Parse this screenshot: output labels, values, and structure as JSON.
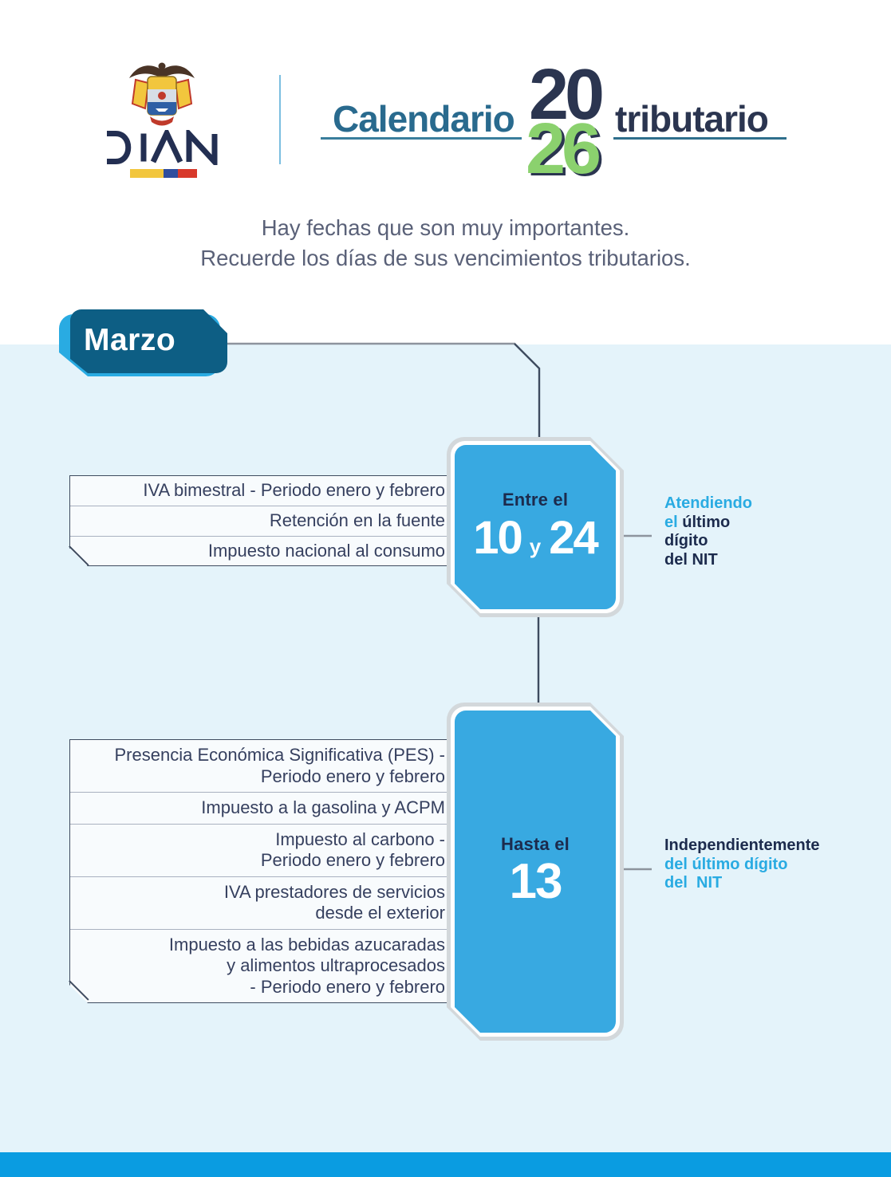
{
  "header": {
    "logo": {
      "wordmark": "DIAN",
      "emblem_icon": "colombia-coat-of-arms",
      "flag_icon": "colombia-flag-bar"
    },
    "title": {
      "part1": "Calendario",
      "year_top": "20",
      "year_bottom": "26",
      "part2": "tributario"
    }
  },
  "intro": {
    "line1": "Hay fechas que son muy importantes.",
    "line2": "Recuerde los días de sus vencimientos tributarios."
  },
  "month": {
    "label": "Marzo"
  },
  "schedule": [
    {
      "period_label": "Entre el",
      "day_start": "10",
      "conjunction": "y",
      "day_end": "24",
      "taxes": [
        "IVA bimestral - Periodo enero y febrero",
        "Retención en la fuente",
        "Impuesto nacional al consumo"
      ],
      "note_lines": [
        [
          {
            "text": "Atendiendo",
            "style": "accent"
          }
        ],
        [
          {
            "text": "el ",
            "style": "accent"
          },
          {
            "text": "último",
            "style": "navy"
          }
        ],
        [
          {
            "text": "dígito",
            "style": "navy"
          }
        ],
        [
          {
            "text": "del NIT",
            "style": "navy"
          }
        ]
      ]
    },
    {
      "period_label": "Hasta el",
      "day": "13",
      "taxes": [
        "Presencia Económica Significativa (PES) -\nPeriodo enero y febrero",
        "Impuesto a la gasolina y ACPM",
        "Impuesto al carbono -\nPeriodo enero y febrero",
        "IVA prestadores de servicios\ndesde el exterior",
        "Impuesto a las bebidas azucaradas\ny alimentos ultraprocesados\n- Periodo enero y febrero"
      ],
      "note_lines": [
        [
          {
            "text": "Independientemente",
            "style": "navy"
          }
        ],
        [
          {
            "text": "del último dígito",
            "style": "accent"
          }
        ],
        [
          {
            "text": "del  NIT",
            "style": "accent"
          }
        ]
      ]
    }
  ],
  "colors": {
    "accent_blue": "#29ABE2",
    "card_blue": "#38A9E1",
    "footer_blue": "#0A9CE1",
    "dark_teal": "#0D5E84",
    "navy": "#1C2B4D",
    "title_navy": "#2B3550",
    "title_teal": "#296A8E",
    "green": "#8BD16E",
    "bg_light": "#E4F3FA",
    "line_navy": "#3E4B5F",
    "line_gray": "#8D949D",
    "subtitle_gray": "#5A6178",
    "list_navy": "#36405F"
  }
}
